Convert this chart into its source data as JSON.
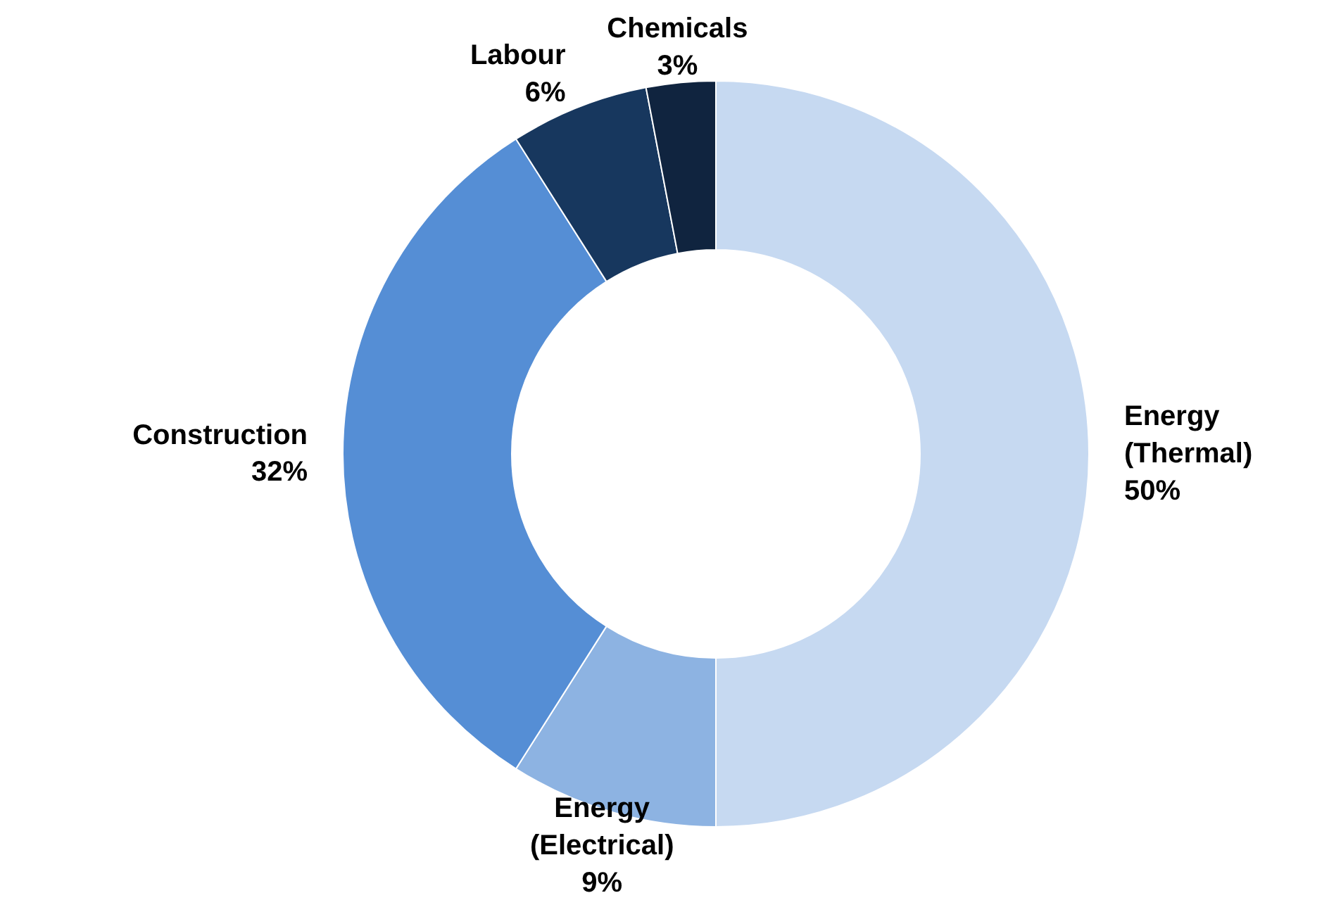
{
  "chart_data": {
    "type": "donut",
    "categories": [
      "Energy (Thermal)",
      "Energy (Electrical)",
      "Construction",
      "Labour",
      "Chemicals"
    ],
    "values": [
      50,
      9,
      32,
      6,
      3
    ],
    "value_labels": [
      "50%",
      "9%",
      "32%",
      "6%",
      "3%"
    ],
    "colors": [
      "#c6d9f1",
      "#8db3e2",
      "#558ed5",
      "#17375e",
      "#10243f"
    ],
    "legend": false
  }
}
